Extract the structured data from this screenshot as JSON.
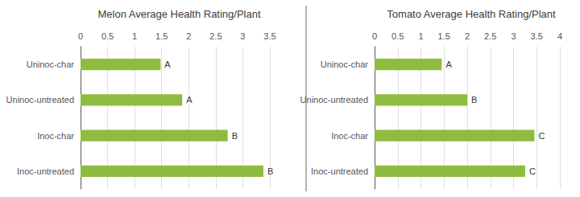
{
  "chart_data": [
    {
      "type": "bar",
      "orientation": "horizontal",
      "title": "Melon Average Health Rating/Plant",
      "categories": [
        "Uninoc-char",
        "Uninoc-untreated",
        "Inoc-char",
        "Inoc-untreated"
      ],
      "values": [
        1.48,
        1.88,
        2.72,
        3.38
      ],
      "annotations": [
        "A",
        "A",
        "B",
        "B"
      ],
      "color": "#8fbc3e",
      "xlim": [
        0,
        3.5
      ],
      "xticks": [
        0,
        0.5,
        1,
        1.5,
        2,
        2.5,
        3,
        3.5
      ],
      "grid": true
    },
    {
      "type": "bar",
      "orientation": "horizontal",
      "title": "Tomato Average Health Rating/Plant",
      "categories": [
        "Uninoc-char",
        "Uninoc-untreated",
        "Inoc-char",
        "Inoc-untreated"
      ],
      "values": [
        1.45,
        2.0,
        3.45,
        3.25
      ],
      "annotations": [
        "A",
        "B",
        "C",
        "C"
      ],
      "color": "#8fbc3e",
      "xlim": [
        0,
        4.0
      ],
      "xticks": [
        0,
        0.5,
        1,
        1.5,
        2,
        2.5,
        3,
        3.5,
        4
      ],
      "grid": true
    }
  ]
}
